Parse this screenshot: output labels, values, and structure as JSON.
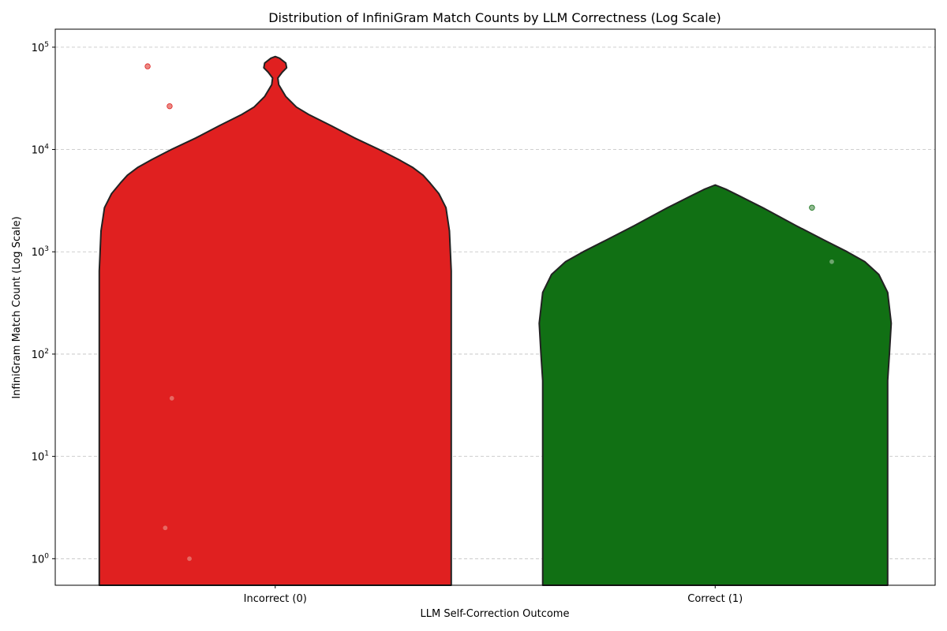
{
  "chart_data": {
    "type": "violin",
    "title": "Distribution of InfiniGram Match Counts by LLM Correctness (Log Scale)",
    "xlabel": "LLM Self-Correction Outcome",
    "ylabel": "InfiniGram Match Count (Log Scale)",
    "yscale": "log",
    "ylim": [
      0.55,
      150000
    ],
    "y_ticks": [
      {
        "value": 1,
        "base": "10",
        "exp": "0"
      },
      {
        "value": 10,
        "base": "10",
        "exp": "1"
      },
      {
        "value": 100,
        "base": "10",
        "exp": "2"
      },
      {
        "value": 1000,
        "base": "10",
        "exp": "3"
      },
      {
        "value": 10000,
        "base": "10",
        "exp": "4"
      },
      {
        "value": 100000,
        "base": "10",
        "exp": "5"
      }
    ],
    "grid": true,
    "categories": [
      "Incorrect (0)",
      "Correct (1)"
    ],
    "series": [
      {
        "category": "Incorrect (0)",
        "color": "#e02020",
        "point_color": "#e8756f",
        "violin_profile": [
          [
            0.55,
            1.0
          ],
          [
            650,
            1.0
          ],
          [
            1600,
            0.99
          ],
          [
            2700,
            0.97
          ],
          [
            3700,
            0.93
          ],
          [
            4700,
            0.88
          ],
          [
            5600,
            0.84
          ],
          [
            6700,
            0.78
          ],
          [
            8000,
            0.7
          ],
          [
            10000,
            0.59
          ],
          [
            13000,
            0.45
          ],
          [
            17000,
            0.32
          ],
          [
            22000,
            0.19
          ],
          [
            26000,
            0.12
          ],
          [
            33000,
            0.06
          ],
          [
            43000,
            0.02
          ],
          [
            50000,
            0.015
          ],
          [
            57000,
            0.04
          ],
          [
            63000,
            0.065
          ],
          [
            70000,
            0.06
          ],
          [
            78000,
            0.025
          ],
          [
            81000,
            0.0
          ]
        ],
        "points": [
          {
            "jitter": -0.29,
            "y": 65000
          },
          {
            "jitter": -0.24,
            "y": 26500
          },
          {
            "jitter": -0.235,
            "y": 37
          },
          {
            "jitter": -0.25,
            "y": 2
          },
          {
            "jitter": -0.195,
            "y": 1
          }
        ]
      },
      {
        "category": "Correct (1)",
        "color": "#117014",
        "point_color": "#7fae7f",
        "violin_profile": [
          [
            0.55,
            0.98
          ],
          [
            55,
            0.98
          ],
          [
            100,
            0.99
          ],
          [
            200,
            1.0
          ],
          [
            400,
            0.98
          ],
          [
            600,
            0.93
          ],
          [
            800,
            0.85
          ],
          [
            1000,
            0.75
          ],
          [
            1300,
            0.62
          ],
          [
            1800,
            0.46
          ],
          [
            2700,
            0.27
          ],
          [
            3500,
            0.14
          ],
          [
            4100,
            0.06
          ],
          [
            4500,
            0.0
          ]
        ],
        "points": [
          {
            "jitter": 0.22,
            "y": 2700
          },
          {
            "jitter": 0.265,
            "y": 800
          }
        ]
      }
    ]
  }
}
